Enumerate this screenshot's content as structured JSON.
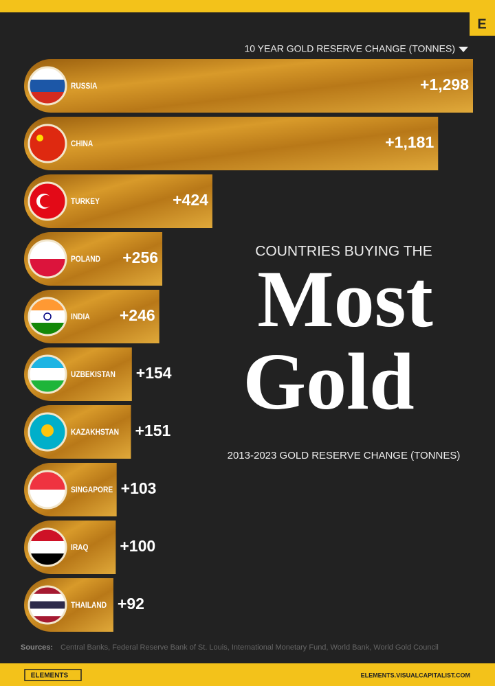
{
  "chart_data": {
    "type": "bar",
    "orientation": "horizontal",
    "header": "10 YEAR GOLD RESERVE CHANGE (TONNES)",
    "pretitle": "COUNTRIES BUYING THE",
    "title_lines": [
      "Most",
      "Gold"
    ],
    "subtitle": "2013-2023 GOLD RESERVE CHANGE (TONNES)",
    "categories": [
      "RUSSIA",
      "CHINA",
      "TURKEY",
      "POLAND",
      "INDIA",
      "UZBEKISTAN",
      "KAZAKHSTAN",
      "SINGAPORE",
      "IRAQ",
      "THAILAND"
    ],
    "values": [
      1298,
      1181,
      424,
      256,
      246,
      154,
      151,
      103,
      100,
      92
    ],
    "value_labels": [
      "+1,298",
      "+1,181",
      "+424",
      "+256",
      "+246",
      "+154",
      "+151",
      "+103",
      "+100",
      "+92"
    ],
    "color": "#c98a1e"
  },
  "logo": "E",
  "sources_label": "Sources:",
  "sources": "Central Banks, Federal Reserve Bank of St. Louis, International Monetary Fund, World Bank, World Gold Council",
  "footer": {
    "brand": "ELEMENTS",
    "url": "ELEMENTS.VISUALCAPITALIST.COM"
  }
}
